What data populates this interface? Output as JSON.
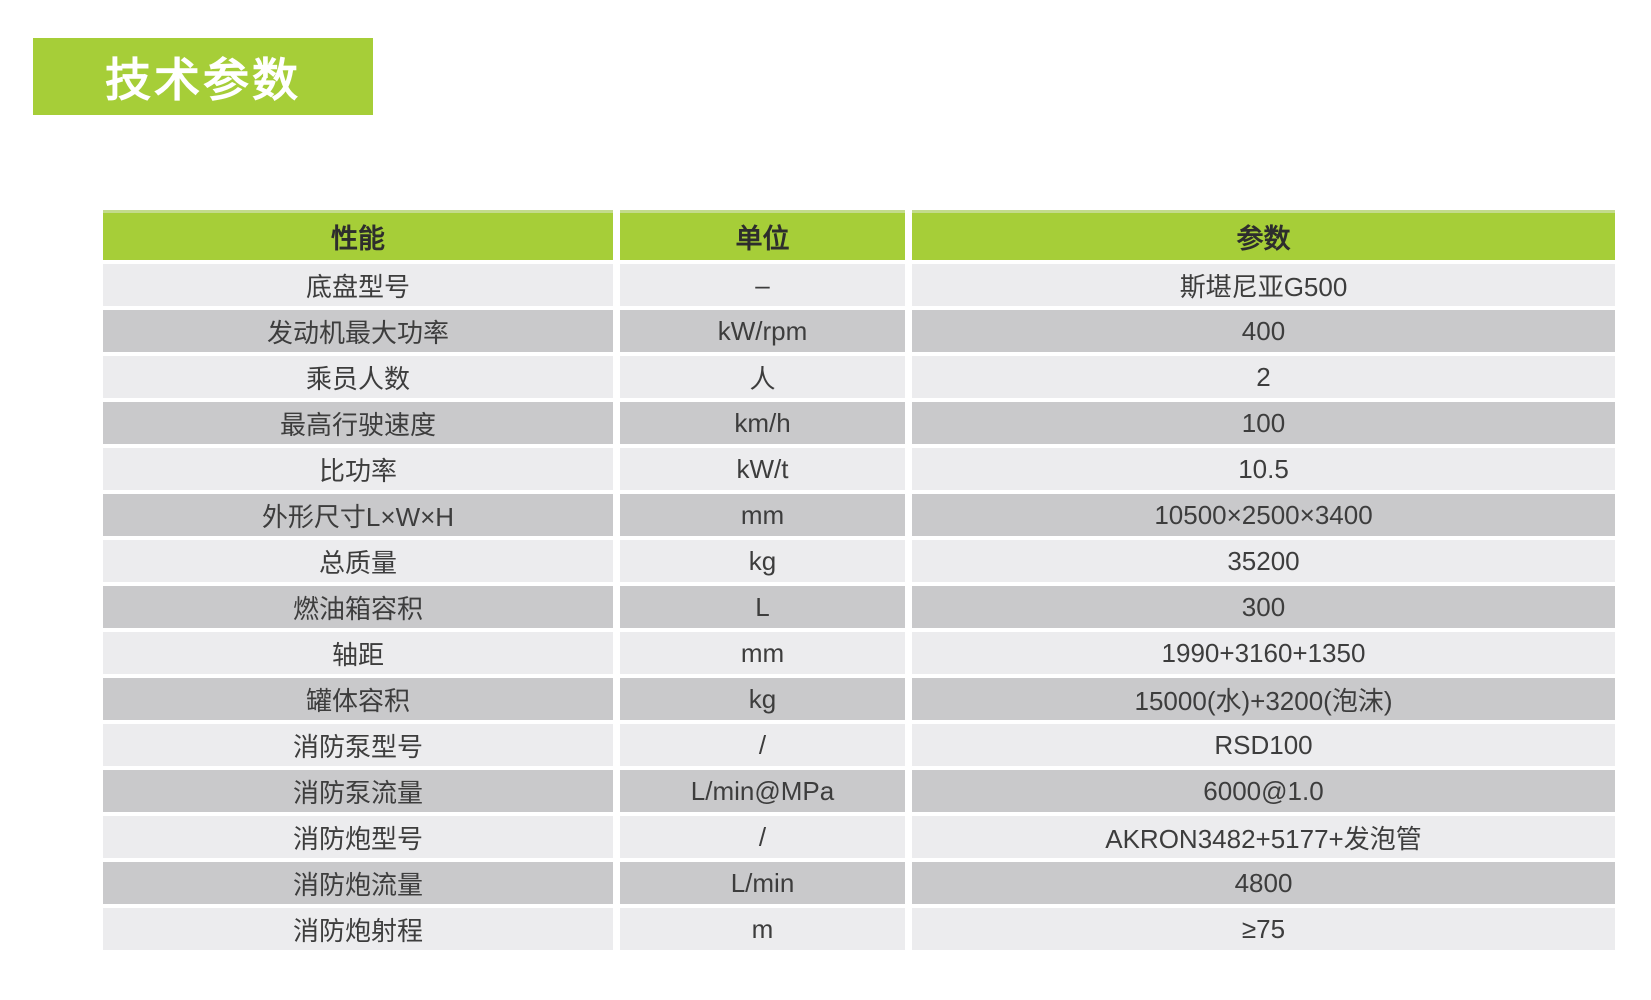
{
  "title": {
    "label": "技术参数"
  },
  "colors": {
    "accent": "#a6ce38",
    "topline": "#c3db8c",
    "row_light": "#ececee",
    "row_dark": "#c9c9cb",
    "header_text": "#2d2d2d",
    "body_text": "#3d3d3d",
    "title_text": "#ffffff"
  },
  "table": {
    "columns": [
      "性能",
      "单位",
      "参数"
    ],
    "rows": [
      {
        "name": "底盘型号",
        "unit": "–",
        "value": "斯堪尼亚G500"
      },
      {
        "name": "发动机最大功率",
        "unit": "kW/rpm",
        "value": "400"
      },
      {
        "name": "乘员人数",
        "unit": "人",
        "value": "2"
      },
      {
        "name": "最高行驶速度",
        "unit": "km/h",
        "value": "100"
      },
      {
        "name": "比功率",
        "unit": "kW/t",
        "value": "10.5"
      },
      {
        "name": "外形尺寸L×W×H",
        "unit": "mm",
        "value": "10500×2500×3400"
      },
      {
        "name": "总质量",
        "unit": "kg",
        "value": "35200"
      },
      {
        "name": "燃油箱容积",
        "unit": "L",
        "value": "300"
      },
      {
        "name": "轴距",
        "unit": "mm",
        "value": "1990+3160+1350"
      },
      {
        "name": "罐体容积",
        "unit": "kg",
        "value": "15000(水)+3200(泡沫)"
      },
      {
        "name": "消防泵型号",
        "unit": "/",
        "value": "RSD100"
      },
      {
        "name": "消防泵流量",
        "unit": "L/min@MPa",
        "value": "6000@1.0"
      },
      {
        "name": "消防炮型号",
        "unit": "/",
        "value": "AKRON3482+5177+发泡管"
      },
      {
        "name": "消防炮流量",
        "unit": "L/min",
        "value": "4800"
      },
      {
        "name": "消防炮射程",
        "unit": "m",
        "value": "≥75"
      }
    ]
  }
}
